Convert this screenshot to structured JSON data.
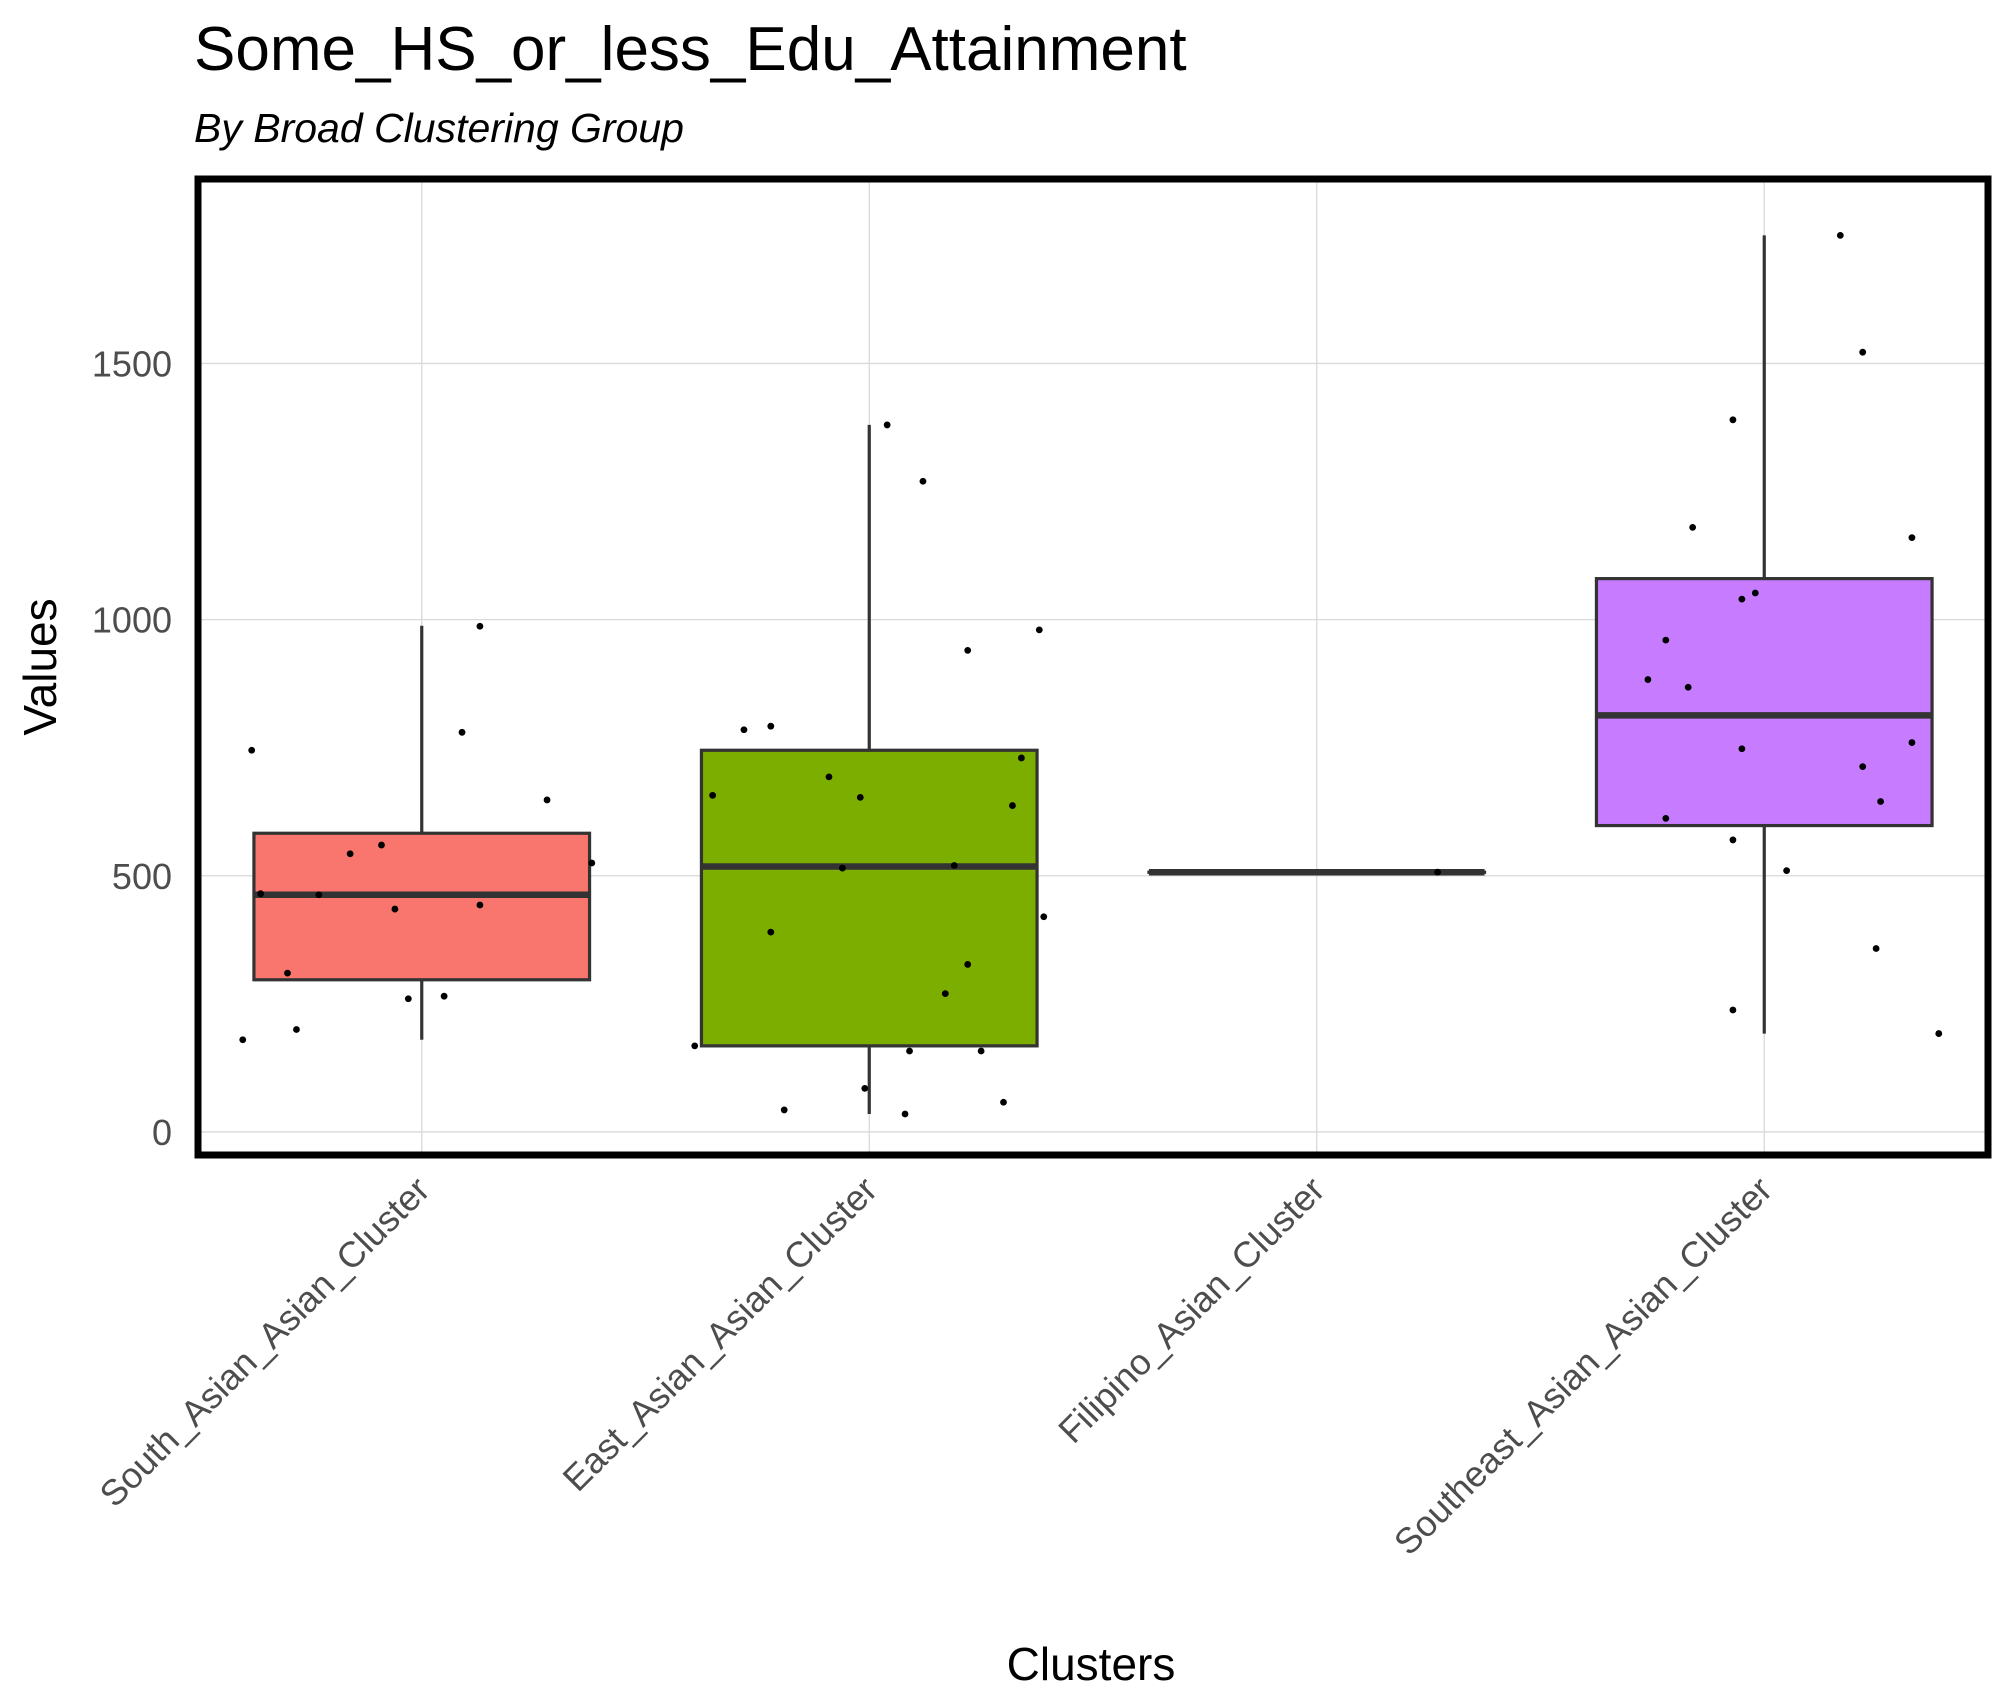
{
  "chart_data": {
    "type": "boxplot",
    "title": "Some_HS_or_less_Edu_Attainment",
    "subtitle": "By Broad Clustering Group",
    "xlabel": "Clusters",
    "ylabel": "Values",
    "ylim": [
      -45,
      1860
    ],
    "yticks": [
      0,
      500,
      1000,
      1500
    ],
    "grid": true,
    "legend": "none",
    "categories": [
      "South_Asian_Asian_Cluster",
      "East_Asian_Asian_Cluster",
      "Filipino_Asian_Cluster",
      "Southeast_Asian_Asian_Cluster"
    ],
    "series": [
      {
        "category": "South_Asian_Asian_Cluster",
        "color": "#F8766D",
        "box": {
          "min": 180,
          "q1": 297,
          "median": 463,
          "q3": 583,
          "max": 988
        },
        "points": [
          [
            -0.4,
            180
          ],
          [
            -0.38,
            745
          ],
          [
            -0.36,
            465
          ],
          [
            -0.3,
            310
          ],
          [
            -0.28,
            200
          ],
          [
            -0.23,
            463
          ],
          [
            -0.16,
            543
          ],
          [
            -0.09,
            560
          ],
          [
            -0.06,
            435
          ],
          [
            -0.03,
            260
          ],
          [
            0.05,
            265
          ],
          [
            0.13,
            443
          ],
          [
            0.09,
            780
          ],
          [
            0.13,
            987
          ],
          [
            0.28,
            648
          ],
          [
            0.38,
            525
          ]
        ]
      },
      {
        "category": "East_Asian_Asian_Cluster",
        "color": "#7CAE00",
        "box": {
          "min": 35,
          "q1": 168,
          "median": 518,
          "q3": 745,
          "max": 1380
        },
        "points": [
          [
            -0.39,
            168
          ],
          [
            -0.35,
            657
          ],
          [
            -0.28,
            785
          ],
          [
            -0.22,
            792
          ],
          [
            -0.22,
            390
          ],
          [
            -0.19,
            43
          ],
          [
            -0.09,
            693
          ],
          [
            -0.06,
            515
          ],
          [
            -0.02,
            653
          ],
          [
            -0.01,
            85
          ],
          [
            0.04,
            1380
          ],
          [
            0.08,
            35
          ],
          [
            0.09,
            158
          ],
          [
            0.12,
            1270
          ],
          [
            0.17,
            270
          ],
          [
            0.19,
            520
          ],
          [
            0.22,
            327
          ],
          [
            0.22,
            940
          ],
          [
            0.25,
            158
          ],
          [
            0.3,
            58
          ],
          [
            0.32,
            637
          ],
          [
            0.34,
            730
          ],
          [
            0.38,
            980
          ],
          [
            0.39,
            420
          ]
        ]
      },
      {
        "category": "Filipino_Asian_Cluster",
        "color": "#00BFC4",
        "box": {
          "min": 507,
          "q1": 507,
          "median": 507,
          "q3": 507,
          "max": 507
        },
        "points": [
          [
            0.27,
            507
          ]
        ]
      },
      {
        "category": "Southeast_Asian_Asian_Cluster",
        "color": "#C77CFF",
        "box": {
          "min": 192,
          "q1": 598,
          "median": 813,
          "q3": 1080,
          "max": 1750
        },
        "points": [
          [
            -0.26,
            883
          ],
          [
            -0.22,
            960
          ],
          [
            -0.22,
            612
          ],
          [
            -0.17,
            868
          ],
          [
            -0.16,
            1180
          ],
          [
            -0.07,
            1390
          ],
          [
            -0.07,
            238
          ],
          [
            -0.07,
            570
          ],
          [
            -0.05,
            1040
          ],
          [
            -0.05,
            748
          ],
          [
            -0.02,
            1052
          ],
          [
            0.05,
            510
          ],
          [
            0.17,
            1750
          ],
          [
            0.22,
            713
          ],
          [
            0.22,
            1522
          ],
          [
            0.25,
            358
          ],
          [
            0.26,
            645
          ],
          [
            0.33,
            760
          ],
          [
            0.33,
            1160
          ],
          [
            0.39,
            192
          ]
        ]
      }
    ]
  }
}
